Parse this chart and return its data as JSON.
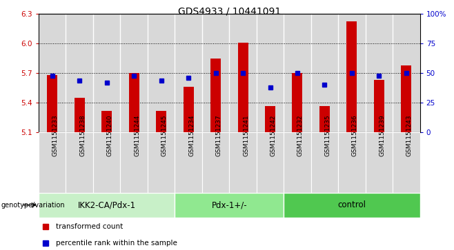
{
  "title": "GDS4933 / 10441091",
  "samples": [
    "GSM1151233",
    "GSM1151238",
    "GSM1151240",
    "GSM1151244",
    "GSM1151245",
    "GSM1151234",
    "GSM1151237",
    "GSM1151241",
    "GSM1151242",
    "GSM1151232",
    "GSM1151235",
    "GSM1151236",
    "GSM1151239",
    "GSM1151243"
  ],
  "groups": [
    {
      "label": "IKK2-CA/Pdx-1",
      "start": 0,
      "end": 5,
      "color": "#c8f0c8"
    },
    {
      "label": "Pdx-1+/-",
      "start": 5,
      "end": 9,
      "color": "#90e890"
    },
    {
      "label": "control",
      "start": 9,
      "end": 14,
      "color": "#50c850"
    }
  ],
  "transformed_count": [
    5.68,
    5.45,
    5.32,
    5.7,
    5.32,
    5.56,
    5.85,
    6.01,
    5.37,
    5.7,
    5.37,
    6.22,
    5.63,
    5.78
  ],
  "percentile_rank": [
    48,
    44,
    42,
    48,
    44,
    46,
    50,
    50,
    38,
    50,
    40,
    50,
    48,
    50
  ],
  "y_min": 5.1,
  "y_max": 6.3,
  "y_ticks": [
    5.1,
    5.4,
    5.7,
    6.0,
    6.3
  ],
  "right_y_ticks": [
    0,
    25,
    50,
    75,
    100
  ],
  "bar_color": "#cc0000",
  "dot_color": "#0000cc",
  "col_bg_color": "#d8d8d8",
  "col_border_color": "#ffffff",
  "legend_label_bar": "transformed count",
  "legend_label_dot": "percentile rank within the sample",
  "group_label": "genotype/variation",
  "grid_lines": [
    5.4,
    5.7,
    6.0
  ],
  "title_fontsize": 10,
  "tick_fontsize": 7.5,
  "sample_fontsize": 6.5
}
